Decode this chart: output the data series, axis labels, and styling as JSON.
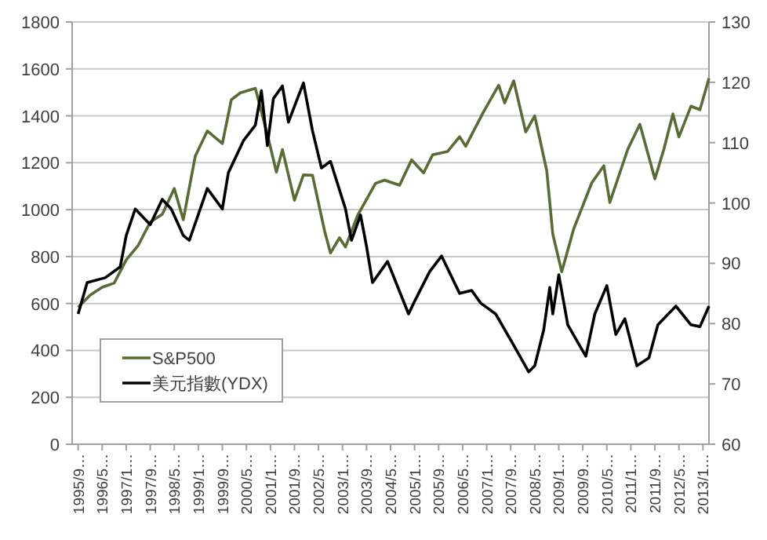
{
  "chart_data": {
    "type": "line",
    "legend": "bottom left",
    "grid": "y",
    "xlim": [
      "1995-07",
      "2013-03"
    ],
    "xticks": [
      {
        "value": "1995-09",
        "label": "1995/9…"
      },
      {
        "value": "1996-05",
        "label": "1996/5…"
      },
      {
        "value": "1997-01",
        "label": "1997/1…"
      },
      {
        "value": "1997-09",
        "label": "1997/9…"
      },
      {
        "value": "1998-05",
        "label": "1998/5…"
      },
      {
        "value": "1999-01",
        "label": "1999/1…"
      },
      {
        "value": "1999-09",
        "label": "1999/9…"
      },
      {
        "value": "2000-05",
        "label": "2000/5…"
      },
      {
        "value": "2001-01",
        "label": "2001/1…"
      },
      {
        "value": "2001-09",
        "label": "2001/9…"
      },
      {
        "value": "2002-05",
        "label": "2002/5…"
      },
      {
        "value": "2003-01",
        "label": "2003/1…"
      },
      {
        "value": "2003-09",
        "label": "2003/9…"
      },
      {
        "value": "2004-05",
        "label": "2004/5…"
      },
      {
        "value": "2005-01",
        "label": "2005/1…"
      },
      {
        "value": "2005-09",
        "label": "2005/9…"
      },
      {
        "value": "2006-05",
        "label": "2006/5…"
      },
      {
        "value": "2007-01",
        "label": "2007/1…"
      },
      {
        "value": "2007-09",
        "label": "2007/9…"
      },
      {
        "value": "2008-05",
        "label": "2008/5…"
      },
      {
        "value": "2009-01",
        "label": "2009/1…"
      },
      {
        "value": "2009-09",
        "label": "2009/9…"
      },
      {
        "value": "2010-05",
        "label": "2010/5…"
      },
      {
        "value": "2011-01",
        "label": "2011/1…"
      },
      {
        "value": "2011-09",
        "label": "2011/9…"
      },
      {
        "value": "2012-05",
        "label": "2012/5…"
      },
      {
        "value": "2013-01",
        "label": "2013/1…"
      }
    ],
    "ylim": [
      0,
      1800
    ],
    "yticks": [
      0,
      200,
      400,
      600,
      800,
      1000,
      1200,
      1400,
      1600,
      1800
    ],
    "y2lim": [
      60,
      130
    ],
    "y2ticks": [
      60,
      70,
      80,
      90,
      100,
      110,
      120,
      130
    ],
    "series": [
      {
        "name": "S&P500",
        "color": "#5a6b35",
        "x": [
          "1995-09",
          "1996-01",
          "1996-05",
          "1996-09",
          "1997-01",
          "1997-05",
          "1997-09",
          "1998-01",
          "1998-05",
          "1998-08",
          "1998-12",
          "1999-04",
          "1999-09",
          "1999-12",
          "2000-03",
          "2000-08",
          "2000-12",
          "2001-03",
          "2001-05",
          "2001-09",
          "2001-12",
          "2002-03",
          "2002-07",
          "2002-09",
          "2002-12",
          "2003-02",
          "2003-06",
          "2003-12",
          "2004-03",
          "2004-08",
          "2004-12",
          "2005-04",
          "2005-07",
          "2005-12",
          "2006-04",
          "2006-06",
          "2006-12",
          "2007-05",
          "2007-07",
          "2007-10",
          "2008-02",
          "2008-05",
          "2008-09",
          "2008-11",
          "2009-02",
          "2009-06",
          "2009-12",
          "2010-04",
          "2010-06",
          "2010-12",
          "2011-04",
          "2011-09",
          "2011-12",
          "2012-03",
          "2012-05",
          "2012-09",
          "2012-12",
          "2013-02",
          "2013-03"
        ],
        "values": [
          584,
          636,
          669,
          687,
          786,
          848,
          947,
          980,
          1090,
          957,
          1229,
          1335,
          1282,
          1469,
          1498,
          1517,
          1320,
          1160,
          1256,
          1040,
          1148,
          1147,
          911,
          815,
          880,
          841,
          975,
          1112,
          1126,
          1104,
          1212,
          1157,
          1234,
          1248,
          1311,
          1270,
          1418,
          1530,
          1455,
          1549,
          1331,
          1400,
          1166,
          896,
          735,
          919,
          1115,
          1187,
          1031,
          1258,
          1364,
          1131,
          1258,
          1408,
          1310,
          1441,
          1426,
          1515,
          1560
        ]
      },
      {
        "name": "美元指數(YDX)",
        "color": "#000000",
        "axis": "y2",
        "x": [
          "1995-09",
          "1995-12",
          "1996-06",
          "1996-11",
          "1997-01",
          "1997-04",
          "1997-09",
          "1998-01",
          "1998-04",
          "1998-08",
          "1998-10",
          "1999-04",
          "1999-09",
          "1999-11",
          "2000-04",
          "2000-08",
          "2000-10",
          "2000-12",
          "2001-02",
          "2001-05",
          "2001-07",
          "2001-12",
          "2002-03",
          "2002-06",
          "2002-09",
          "2003-02",
          "2003-04",
          "2003-07",
          "2003-09",
          "2003-11",
          "2004-04",
          "2004-11",
          "2005-01",
          "2005-06",
          "2005-10",
          "2006-04",
          "2006-08",
          "2006-11",
          "2007-04",
          "2007-10",
          "2008-03",
          "2008-05",
          "2008-08",
          "2008-10",
          "2008-11",
          "2009-01",
          "2009-04",
          "2009-10",
          "2010-01",
          "2010-05",
          "2010-08",
          "2010-11",
          "2011-03",
          "2011-07",
          "2011-10",
          "2012-04",
          "2012-09",
          "2012-12",
          "2013-03"
        ],
        "values": [
          81.6,
          86.8,
          87.6,
          89.4,
          94.6,
          99,
          96.4,
          100.6,
          99,
          94.6,
          93.8,
          102.4,
          99,
          105,
          110.3,
          112.9,
          118.6,
          109.5,
          117.3,
          119.4,
          113.4,
          119.9,
          112,
          105.8,
          106.9,
          99,
          93.8,
          98,
          92.8,
          86.8,
          90.3,
          81.6,
          83.7,
          88.6,
          91.2,
          85,
          85.5,
          83.4,
          81.6,
          76.4,
          72,
          73,
          79,
          86,
          81.6,
          88.1,
          79.8,
          74.6,
          81.6,
          86.3,
          78.2,
          80.8,
          73,
          74.3,
          79.8,
          82.9,
          79.8,
          79.5,
          82.9
        ]
      }
    ]
  }
}
